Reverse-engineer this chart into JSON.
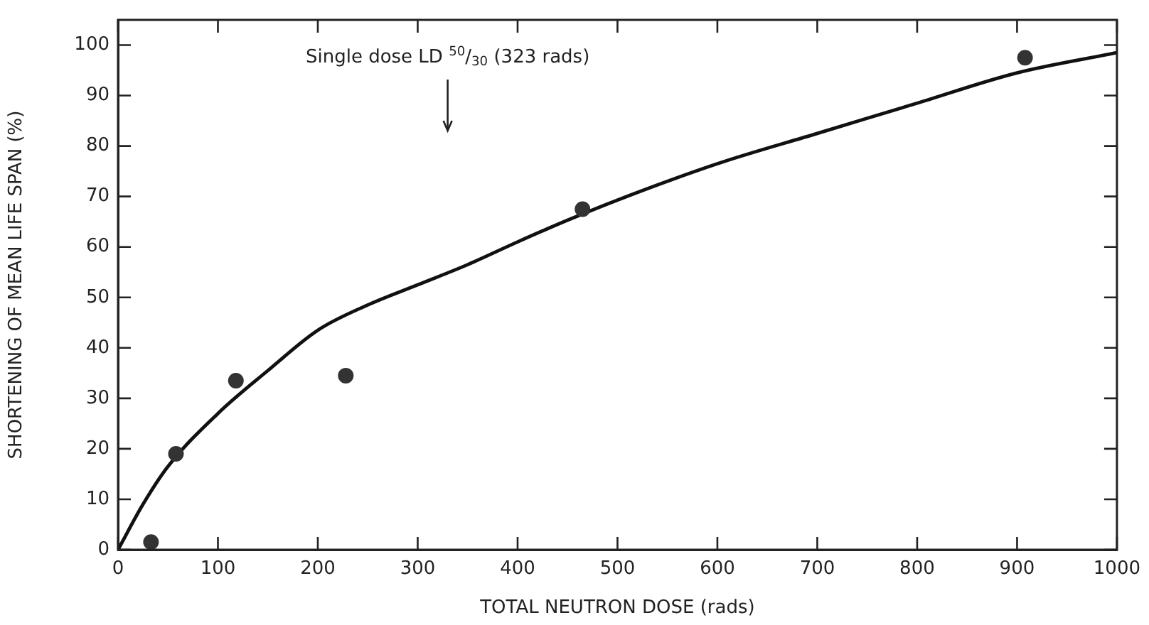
{
  "chart_data": {
    "type": "scatter",
    "xlabel": "TOTAL NEUTRON DOSE (rads)",
    "ylabel": "SHORTENING OF MEAN LIFE SPAN (%)",
    "xlim": [
      0,
      1000
    ],
    "xticks": [
      0,
      100,
      200,
      300,
      400,
      500,
      600,
      700,
      800,
      900,
      1000
    ],
    "ylim": [
      0,
      105
    ],
    "yticks": [
      0,
      10,
      20,
      30,
      40,
      50,
      60,
      70,
      80,
      90,
      100
    ],
    "grid": false,
    "legend": false,
    "marker": "circle",
    "series": [
      {
        "color": "#333333",
        "x": [
          33,
          58,
          118,
          228,
          465,
          908
        ],
        "values": [
          1.5,
          19,
          33.5,
          34.5,
          67.5,
          97.5
        ]
      },
      {
        "type": "line",
        "color": "#111111",
        "marker": "none",
        "line_style": "solid",
        "x": [
          0,
          25,
          50,
          100,
          150,
          200,
          250,
          300,
          350,
          400,
          450,
          500,
          600,
          700,
          800,
          900,
          1000
        ],
        "values": [
          0,
          9,
          16.5,
          27,
          35.5,
          43.5,
          48.5,
          52.5,
          56.5,
          61,
          65.3,
          69.3,
          76.5,
          82.5,
          88.5,
          94.5,
          98.5
        ]
      }
    ],
    "annotations": [
      "Single dose LD $^{50}$/$_{30}$ (323 rads)"
    ]
  }
}
